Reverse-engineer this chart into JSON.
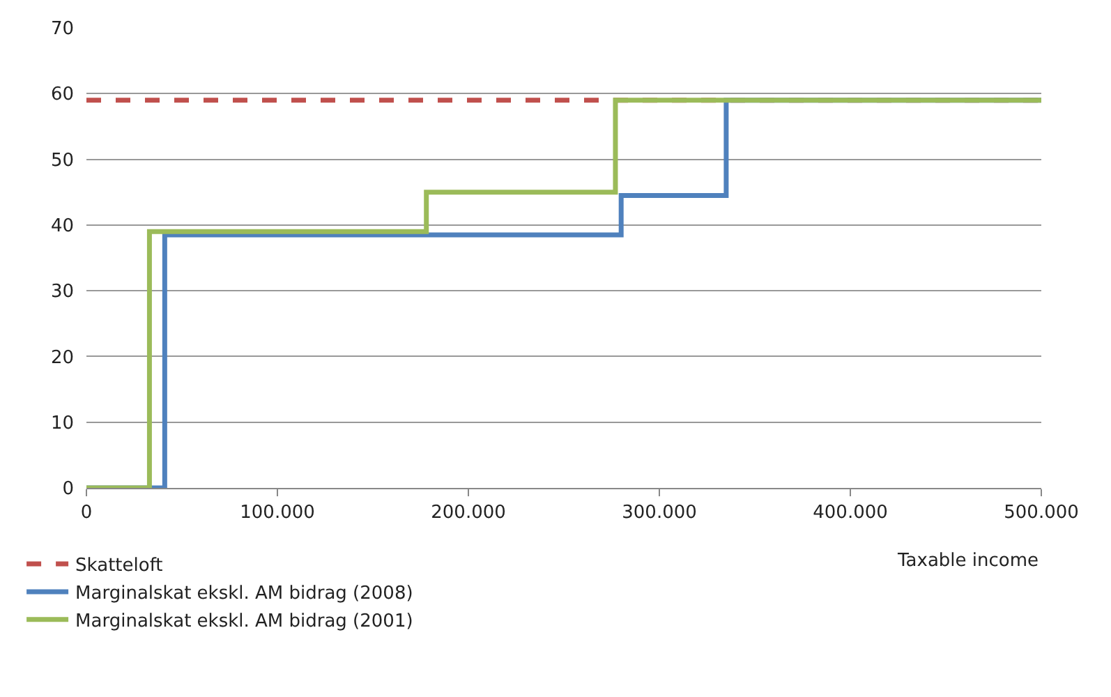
{
  "chart_data": {
    "type": "step",
    "xlabel": "Taxable income",
    "series": [
      {
        "name": "Skatteloft",
        "type": "line",
        "line_style": "dashed",
        "color": "#c0504d",
        "x": [
          0,
          500000
        ],
        "values": [
          59,
          59
        ]
      },
      {
        "name": "Marginalskat ekskl. AM bidrag (2008)",
        "color": "#4f81bd",
        "x": [
          0,
          41000,
          280000,
          335000,
          500000
        ],
        "values": [
          0,
          38.5,
          44.5,
          59,
          59
        ]
      },
      {
        "name": "Marginalskat ekskl. AM bidrag (2001)",
        "color": "#9bbb59",
        "x": [
          0,
          33000,
          178000,
          277000,
          500000
        ],
        "values": [
          0,
          39,
          45,
          59,
          59
        ]
      }
    ],
    "xlim": [
      0,
      500000
    ],
    "xticks": [
      0,
      {
        "value": 100000,
        "label": "100.000"
      },
      {
        "value": 200000,
        "label": "200.000"
      },
      {
        "value": 300000,
        "label": "300.000"
      },
      {
        "value": 400000,
        "label": "400.000"
      },
      {
        "value": 500000,
        "label": "500.000"
      }
    ],
    "ylim": [
      0,
      70
    ],
    "yticks": [
      0,
      10,
      20,
      30,
      40,
      50,
      60,
      70
    ],
    "grid": "y",
    "legend": "bottom left",
    "line_style": "solid",
    "marker": "none"
  }
}
